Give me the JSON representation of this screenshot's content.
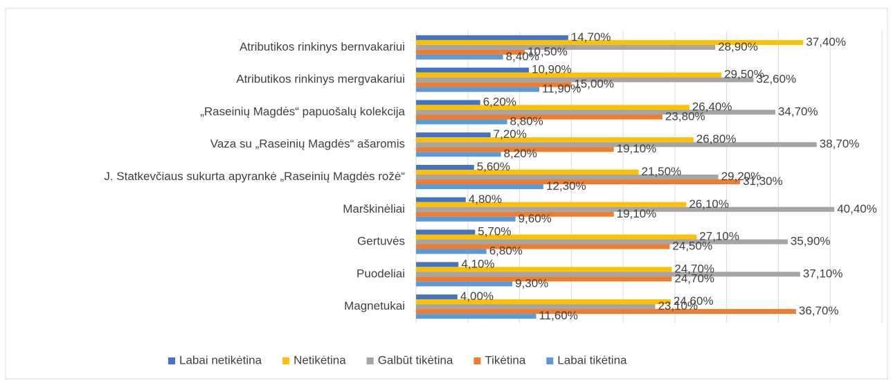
{
  "chart_data": {
    "type": "bar",
    "orientation": "horizontal",
    "categories": [
      "Atributikos rinkinys bernvakariui",
      "Atributikos rinkinys mergvakariui",
      "„Raseinių Magdės“ papuošalų kolekcija",
      "Vaza su „Raseinių Magdės“ ašaromis",
      "J. Statkevčiaus sukurta apyrankė „Raseinių Magdės rožė“",
      "Marškinėliai",
      "Gertuvės",
      "Puodeliai",
      "Magnetukai"
    ],
    "series": [
      {
        "name": "Labai netikėtina",
        "color": "#4472c4",
        "values": [
          14.7,
          10.9,
          6.2,
          7.2,
          5.6,
          4.8,
          5.7,
          4.1,
          4.0
        ],
        "value_labels": [
          "14,70%",
          "10,90%",
          "6,20%",
          "7,20%",
          "5,60%",
          "4,80%",
          "5,70%",
          "4,10%",
          "4,00%"
        ]
      },
      {
        "name": "Netikėtina",
        "color": "#ffc000",
        "values": [
          37.4,
          29.5,
          26.4,
          26.8,
          21.5,
          26.1,
          27.1,
          24.7,
          24.6
        ],
        "value_labels": [
          "37,40%",
          "29,50%",
          "26,40%",
          "26,80%",
          "21,50%",
          "26,10%",
          "27,10%",
          "24,70%",
          "24,60%"
        ]
      },
      {
        "name": "Galbūt tikėtina",
        "color": "#a5a5a5",
        "values": [
          28.9,
          32.6,
          34.7,
          38.7,
          29.2,
          40.4,
          35.9,
          37.1,
          23.1
        ],
        "value_labels": [
          "28,90%",
          "32,60%",
          "34,70%",
          "38,70%",
          "29,20%",
          "40,40%",
          "35,90%",
          "37,10%",
          "23,10%"
        ]
      },
      {
        "name": "Tikėtina",
        "color": "#ed7d31",
        "values": [
          10.5,
          15.0,
          23.8,
          19.1,
          31.3,
          19.1,
          24.5,
          24.7,
          36.7
        ],
        "value_labels": [
          "10,50%",
          "15,00%",
          "23,80%",
          "19,10%",
          "31,30%",
          "19,10%",
          "24,50%",
          "24,70%",
          "36,70%"
        ]
      },
      {
        "name": "Labai tikėtina",
        "color": "#5b9bd5",
        "values": [
          8.4,
          11.9,
          8.8,
          8.2,
          12.3,
          9.6,
          6.8,
          9.3,
          11.6
        ],
        "value_labels": [
          "8,40%",
          "11,90%",
          "8,80%",
          "8,20%",
          "12,30%",
          "9,60%",
          "6,80%",
          "9,30%",
          "11,60%"
        ]
      }
    ],
    "xlim": [
      0,
      45
    ],
    "xticks": [
      0,
      5,
      10,
      15,
      20,
      25,
      30,
      35,
      40,
      45
    ],
    "grid": true,
    "legend": "bottom"
  }
}
